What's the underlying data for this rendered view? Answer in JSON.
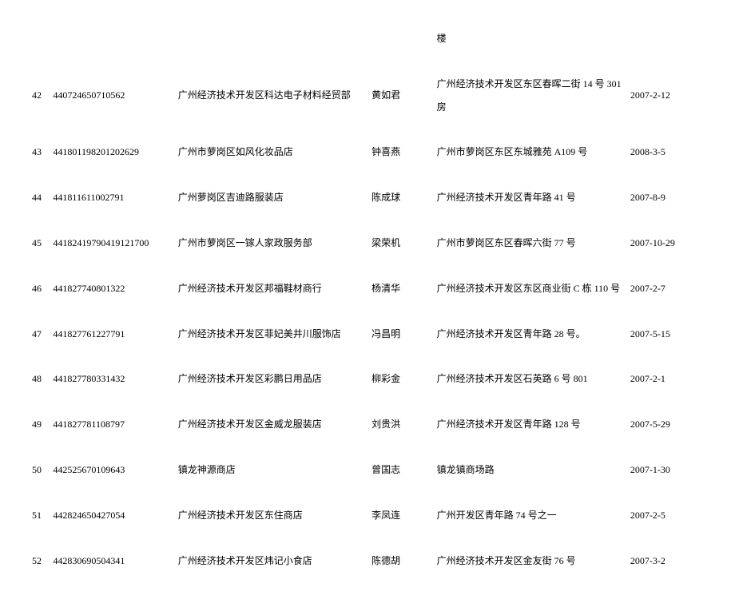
{
  "stub_row": {
    "addr_tail": "楼"
  },
  "rows": [
    {
      "idx": "42",
      "code": "440724650710562",
      "name": "广州经济技术开发区科达电子材料经贸部",
      "owner": "黄如君",
      "addr": "广州经济技术开发区东区春晖二街 14 号 301 房",
      "date": "2007-2-12"
    },
    {
      "idx": "43",
      "code": "441801198201202629",
      "name": "广州市萝岗区如风化妆品店",
      "owner": "钟喜燕",
      "addr": "广州市萝岗区东区东城雅苑 A109 号",
      "date": "2008-3-5"
    },
    {
      "idx": "44",
      "code": "441811611002791",
      "name": "广州萝岗区吉迪路服装店",
      "owner": "陈成球",
      "addr": "广州经济技术开发区青年路 41 号",
      "date": "2007-8-9"
    },
    {
      "idx": "45",
      "code": "441824197904191217​00",
      "name": "广州市萝岗区一镓人家政服务部",
      "owner": "梁荣机",
      "addr": "广州市萝岗区东区春晖六街 77 号",
      "date": "2007-10-29"
    },
    {
      "idx": "46",
      "code": "441827740801322",
      "name": "广州经济技术开发区邦福鞋材商行",
      "owner": "杨清华",
      "addr": "广州经济技术开发区东区商业街 C 栋 110 号",
      "date": "2007-2-7"
    },
    {
      "idx": "47",
      "code": "441827761227791",
      "name": "广州经济技术开发区菲妃美井川服饰店",
      "owner": "冯昌明",
      "addr": "广州经济技术开发区青年路 28 号。",
      "date": "2007-5-15"
    },
    {
      "idx": "48",
      "code": "441827780331432",
      "name": "广州经济技术开发区彩鹏日用品店",
      "owner": "柳彩金",
      "addr": "广州经济技术开发区石英路 6 号 801",
      "date": "2007-2-1"
    },
    {
      "idx": "49",
      "code": "441827781108797",
      "name": "广州经济技术开发区金威龙服装店",
      "owner": "刘贵洪",
      "addr": "广州经济技术开发区青年路 128 号",
      "date": "2007-5-29"
    },
    {
      "idx": "50",
      "code": "442525670109643",
      "name": "镇龙神源商店",
      "owner": "曾国志",
      "addr": "镇龙镇商场路",
      "date": "2007-1-30"
    },
    {
      "idx": "51",
      "code": "442824650427054",
      "name": "广州经济技术开发区东住商店",
      "owner": "李凤连",
      "addr": "广州开发区青年路 74 号之一",
      "date": "2007-2-5"
    },
    {
      "idx": "52",
      "code": "442830690504341",
      "name": "广州经济技术开发区炜记小食店",
      "owner": "陈德胡",
      "addr": "广州经济技术开发区金友街 76 号",
      "date": "2007-3-2"
    }
  ]
}
